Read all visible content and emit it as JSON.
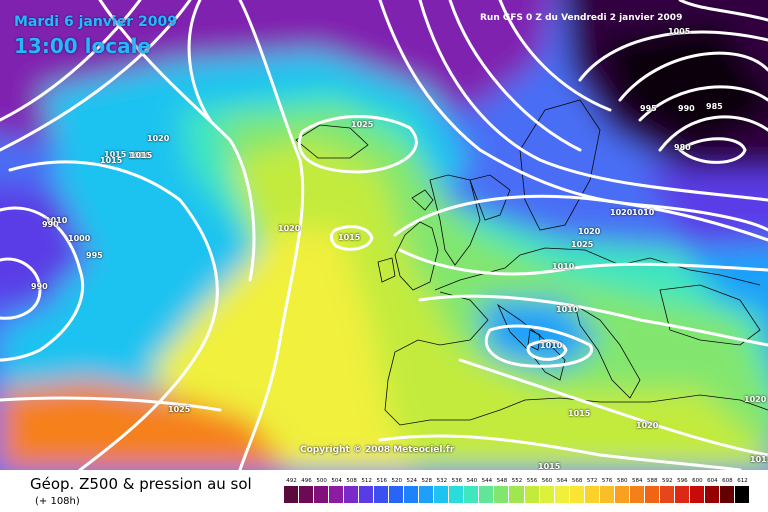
{
  "header": {
    "date": "Mardi 6 janvier 2009",
    "time": "13:00 locale",
    "run": "Run GFS 0 Z du Vendredi 2 janvier 2009",
    "copyright": "Copyright © 2008 Meteociel.fr"
  },
  "footer": {
    "title": "Géop. Z500 & pression au sol",
    "subtitle": "(+ 108h)"
  },
  "isobar_labels": [
    "1005",
    "995",
    "990",
    "985",
    "980",
    "1025",
    "1020",
    "1015",
    "1010",
    "1020",
    "1020",
    "1010",
    "1025",
    "1020",
    "1015",
    "1010",
    "1015",
    "1010",
    "1020",
    "1015",
    "1010",
    "1000",
    "995",
    "990",
    "990",
    "1020",
    "1015",
    "1025",
    "1015",
    "1015",
    "1010"
  ],
  "legend": {
    "values": [
      "492",
      "496",
      "500",
      "504",
      "508",
      "512",
      "516",
      "520",
      "524",
      "528",
      "532",
      "536",
      "540",
      "544",
      "548",
      "552",
      "556",
      "560",
      "564",
      "568",
      "572",
      "576",
      "580",
      "584",
      "588",
      "592",
      "596",
      "600",
      "604",
      "608",
      "612"
    ],
    "colors": [
      "#5a0a3c",
      "#6e0a55",
      "#82107a",
      "#8c1ca0",
      "#7a2ac8",
      "#5a3ce6",
      "#3c50f0",
      "#2864f5",
      "#1e82fa",
      "#1ea0fa",
      "#1ec3f0",
      "#2adcdc",
      "#40e6be",
      "#60e696",
      "#82e66e",
      "#a0e650",
      "#c3eb3c",
      "#dcf03c",
      "#f0f03c",
      "#fae632",
      "#fad22a",
      "#fabe28",
      "#faa01e",
      "#f5801a",
      "#f06414",
      "#e6461a",
      "#dc2814",
      "#c80a0a",
      "#960000",
      "#640000",
      "#000000"
    ]
  }
}
